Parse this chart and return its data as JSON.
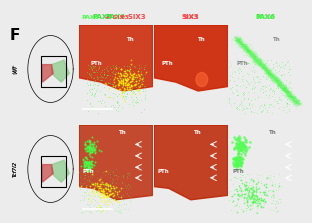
{
  "background_color": "#f0f0f0",
  "panel_label": "F",
  "row_labels": [
    "WT",
    "Tcf7l2"
  ],
  "col_labels": [
    "PAX6 + SIX3",
    "SIX3",
    "PAX6"
  ],
  "col_label_colors": [
    "#00cc00",
    "#ff3333",
    "#00cc00"
  ],
  "col_label_colors2": [
    "#ff3333",
    null,
    null
  ],
  "tissue_labels": [
    [
      "Th",
      "PTh"
    ],
    [
      "Th",
      "PTh"
    ],
    [
      "Th",
      "PTh"
    ],
    [
      "Th",
      "PTh"
    ],
    [
      "Th",
      "PTh"
    ],
    [
      "Th",
      "PTh"
    ]
  ],
  "schematic_bg": "#e8e8e8",
  "panel_bg": "#000000",
  "figure_bg": "#ececec"
}
